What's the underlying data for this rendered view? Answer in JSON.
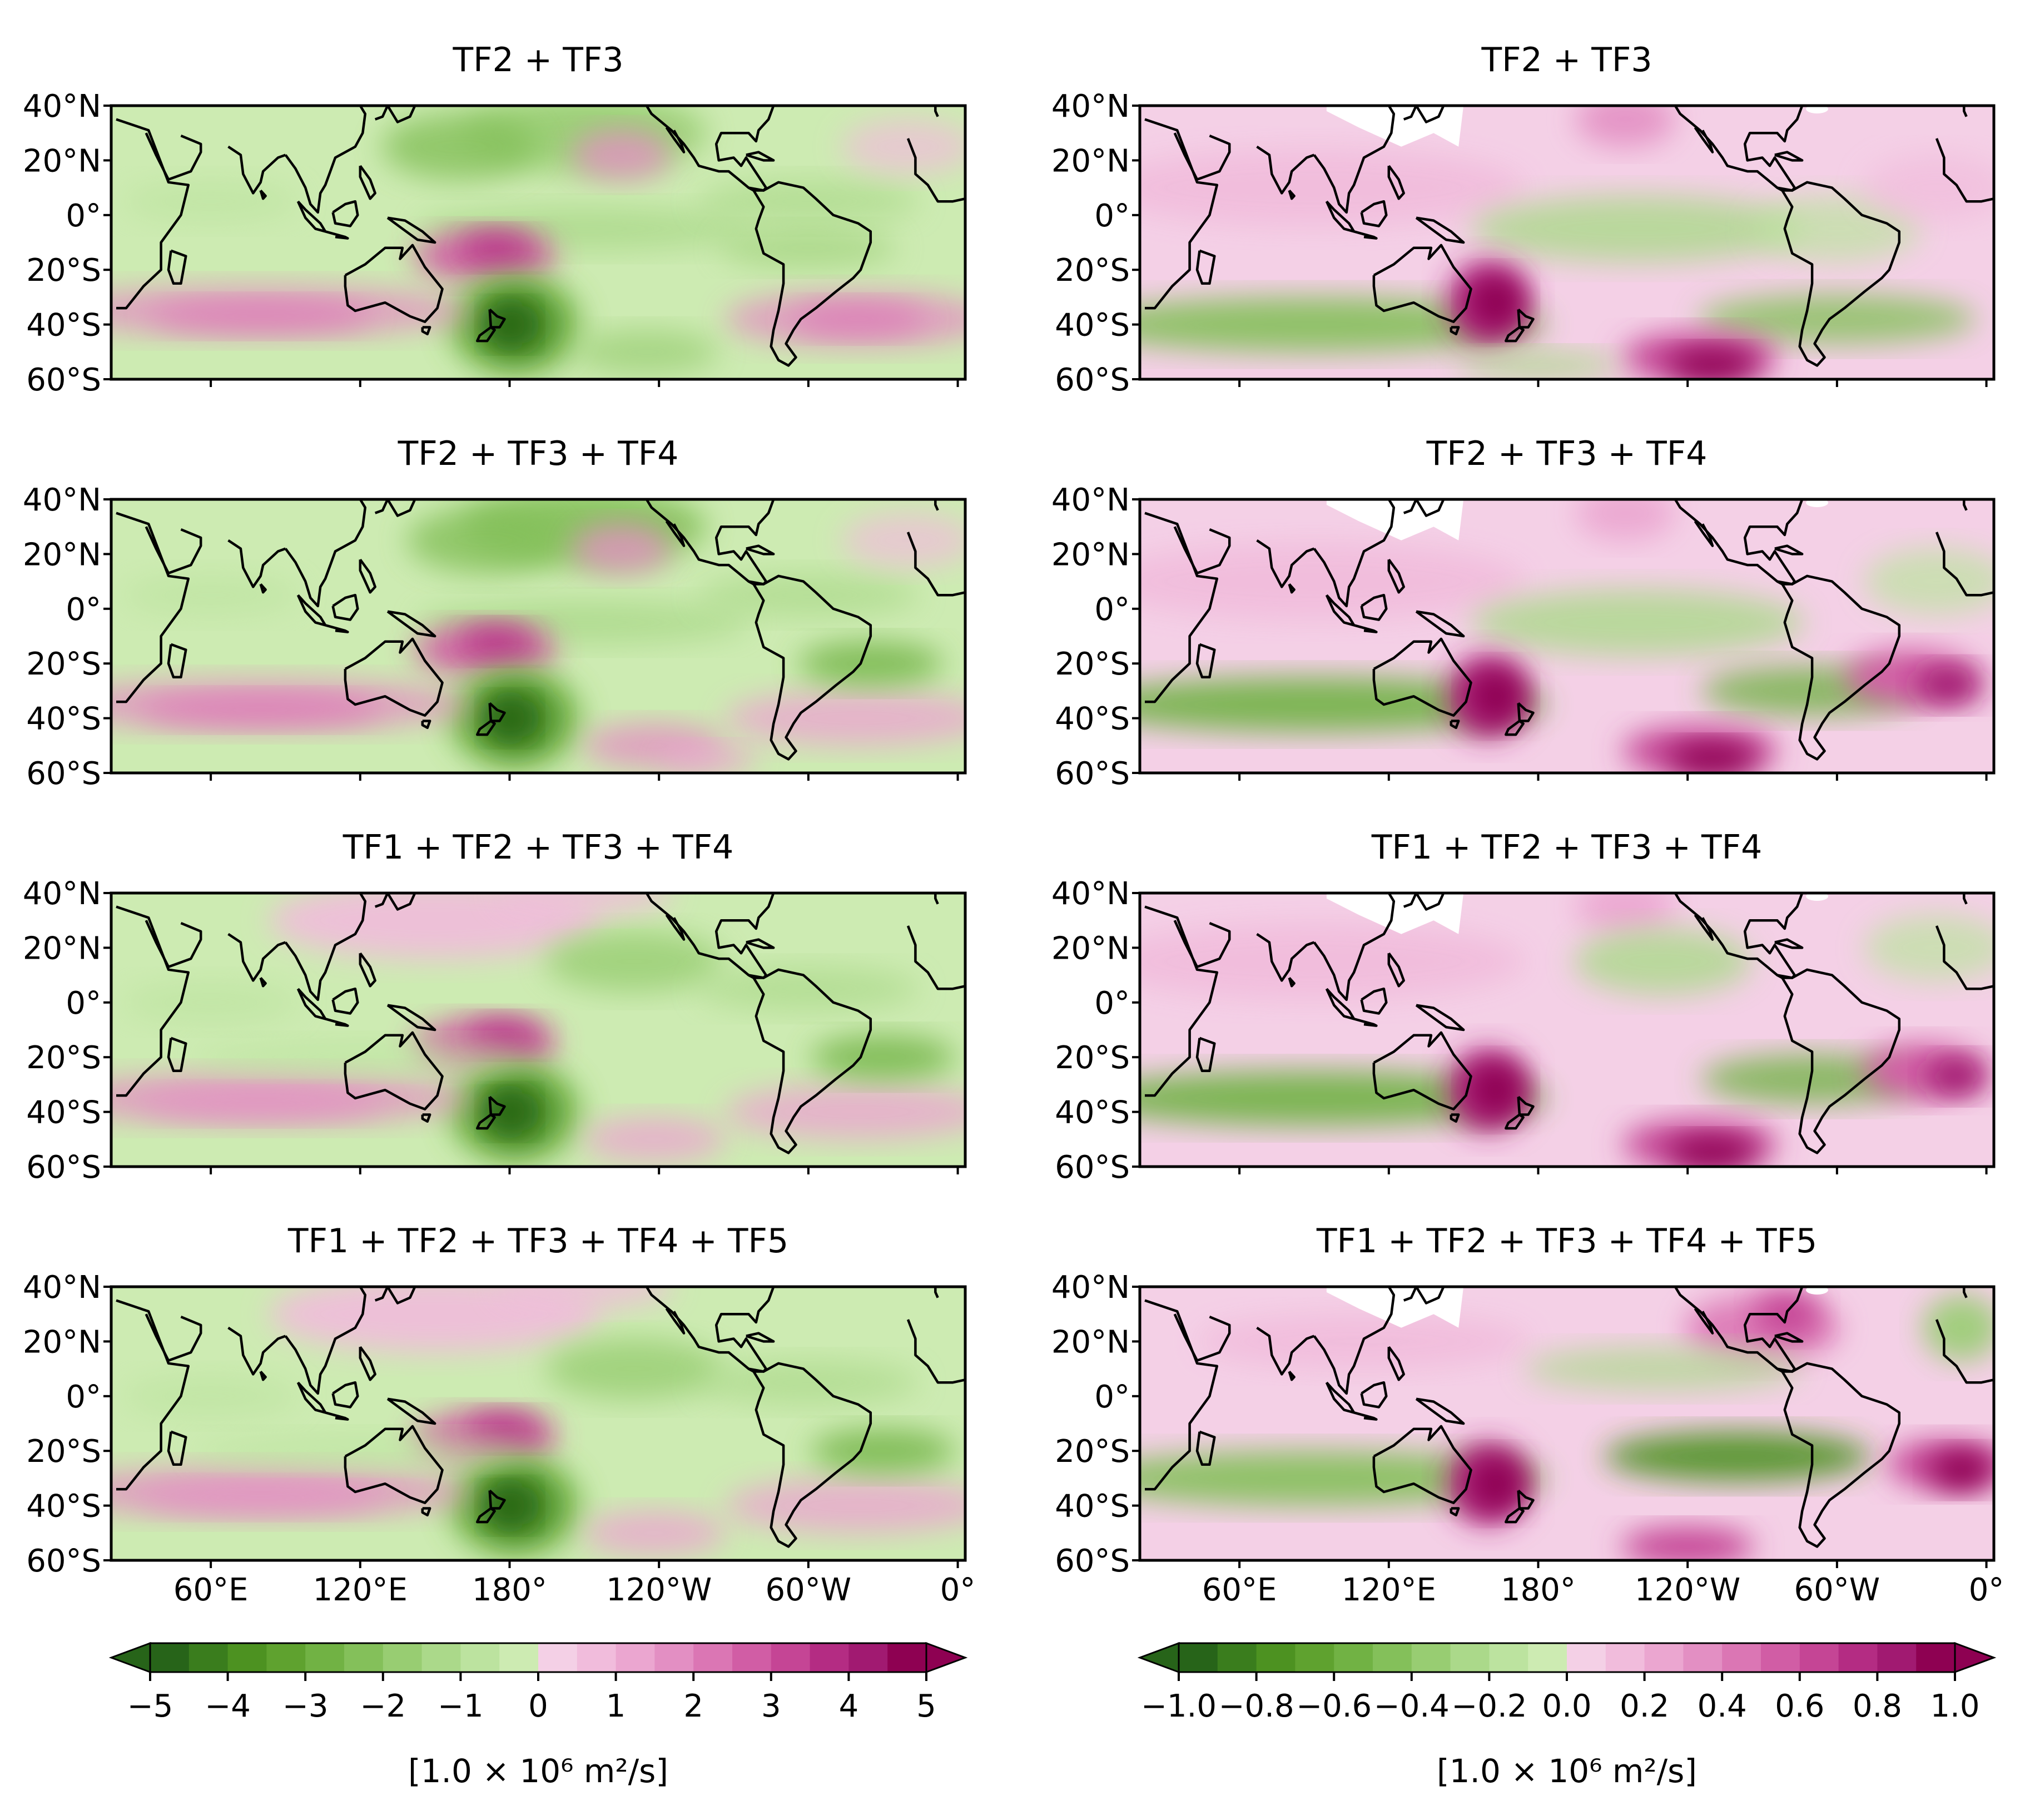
{
  "panels": {
    "left": [
      {
        "title": "TF2 + TF3"
      },
      {
        "title": "TF2 + TF3 + TF4"
      },
      {
        "title": "TF1 + TF2 + TF3 + TF4"
      },
      {
        "title": "TF1 + TF2 + TF3 + TF4 + TF5"
      }
    ],
    "right": [
      {
        "title": "TF2 + TF3"
      },
      {
        "title": "TF2 + TF3 + TF4"
      },
      {
        "title": "TF1 + TF2 + TF3 + TF4"
      },
      {
        "title": "TF1 + TF2 + TF3 + TF4 + TF5"
      }
    ]
  },
  "map": {
    "lat_ticks": [
      "40°N",
      "20°N",
      "0°",
      "20°S",
      "40°S",
      "60°S"
    ],
    "lon_ticks": [
      "60°E",
      "120°E",
      "180°",
      "120°W",
      "60°W",
      "0°"
    ],
    "lat_range": [
      -60,
      40
    ],
    "lon_range": [
      20,
      363
    ]
  },
  "colorbars": {
    "left": {
      "tick_labels": [
        "−5",
        "−4",
        "−3",
        "−2",
        "−1",
        "0",
        "1",
        "2",
        "3",
        "4",
        "5"
      ],
      "range": [
        -5,
        5
      ],
      "units": "[1.0 × 10⁶ m²/s]"
    },
    "right": {
      "tick_labels": [
        "−1.0",
        "−0.8",
        "−0.6",
        "−0.4",
        "−0.2",
        "0.0",
        "0.2",
        "0.4",
        "0.6",
        "0.8",
        "1.0"
      ],
      "range": [
        -1.0,
        1.0
      ],
      "units": "[1.0 × 10⁶ m²/s]"
    }
  },
  "colors": {
    "green_ramp": [
      "#276419",
      "#3a7d1d",
      "#4d9221",
      "#5fa22f",
      "#71b244",
      "#84c05a",
      "#98cd72",
      "#abd98a",
      "#bce39f",
      "#cdebb2"
    ],
    "pink_ramp": [
      "#f4d0e6",
      "#f1bcdc",
      "#eba6d0",
      "#e38fc3",
      "#db76b4",
      "#d15da5",
      "#c54595",
      "#b42c83",
      "#a11a71",
      "#8e0152"
    ]
  }
}
